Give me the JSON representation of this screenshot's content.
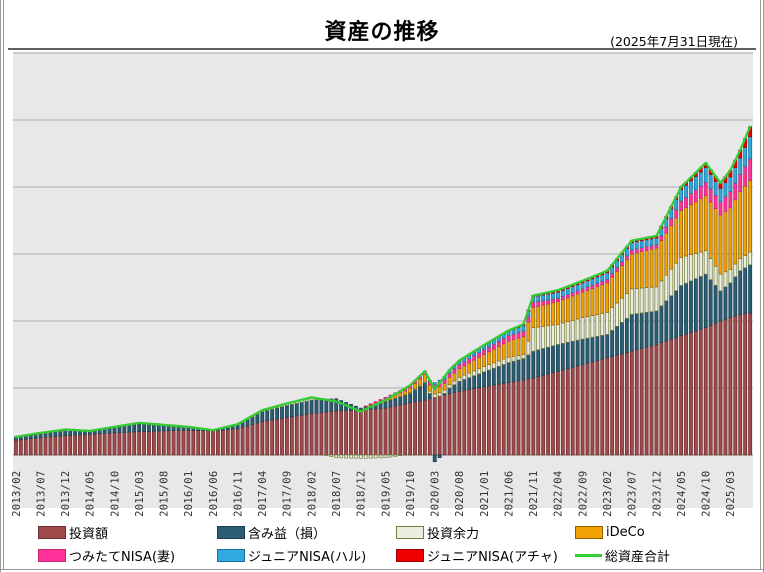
{
  "header": {
    "title": "資産の推移",
    "date_note": "(2025年7月31日現在)"
  },
  "chart_data": {
    "type": "stacked-bar+line",
    "title": "資産の推移",
    "xlabel": "",
    "ylabel": "",
    "y_axis": {
      "labels_visible": false,
      "gridline_intervals": 6,
      "unit": "gridline-units (no tick labels shown)",
      "ylim": [
        -0.15,
        6
      ]
    },
    "x_start": "2013/02",
    "x_end": "2025/07",
    "months_total": 150,
    "tick_interval": 5,
    "x_ticks": [
      "2013/02",
      "2013/07",
      "2013/12",
      "2014/05",
      "2014/10",
      "2015/03",
      "2015/08",
      "2016/01",
      "2016/06",
      "2016/11",
      "2017/04",
      "2017/09",
      "2018/02",
      "2018/07",
      "2018/12",
      "2019/05",
      "2019/10",
      "2020/03",
      "2020/08",
      "2021/01",
      "2021/06",
      "2021/11",
      "2022/04",
      "2022/09",
      "2023/02",
      "2023/07",
      "2023/12",
      "2024/05",
      "2024/10",
      "2025/03"
    ],
    "anchor_indices": [
      0,
      5,
      10,
      15,
      20,
      25,
      30,
      35,
      40,
      45,
      50,
      55,
      60,
      65,
      70,
      75,
      80,
      83,
      85,
      88,
      90,
      95,
      100,
      103,
      105,
      110,
      115,
      120,
      125,
      130,
      135,
      140,
      143,
      145,
      147,
      149
    ],
    "series": [
      {
        "name": "投資額",
        "color": "#A14A4B",
        "border": "#6B2F30",
        "anchors": [
          0.22,
          0.26,
          0.29,
          0.31,
          0.33,
          0.35,
          0.36,
          0.37,
          0.36,
          0.39,
          0.5,
          0.56,
          0.62,
          0.66,
          0.67,
          0.7,
          0.78,
          0.82,
          0.86,
          0.92,
          0.95,
          1.02,
          1.08,
          1.12,
          1.15,
          1.25,
          1.35,
          1.45,
          1.55,
          1.65,
          1.78,
          1.9,
          2.0,
          2.05,
          2.1,
          2.12
        ]
      },
      {
        "name": "含み益（損）",
        "color": "#2B5D73",
        "border": "#193F4F",
        "anchors": [
          0.05,
          0.06,
          0.08,
          0.04,
          0.08,
          0.12,
          0.08,
          0.04,
          0.01,
          0.06,
          0.15,
          0.18,
          0.2,
          0.18,
          0.03,
          0.1,
          0.14,
          0.26,
          -0.1,
          0.08,
          0.15,
          0.22,
          0.3,
          0.32,
          0.4,
          0.4,
          0.38,
          0.35,
          0.55,
          0.5,
          0.75,
          0.8,
          0.45,
          0.52,
          0.65,
          0.72
        ]
      },
      {
        "name": "投資余力",
        "color": "#EDEDDF",
        "border": "#71813D",
        "anchors": [
          0.0,
          0.01,
          0.01,
          0.01,
          0.01,
          0.01,
          0.01,
          0.01,
          0.0,
          0.01,
          0.02,
          0.03,
          0.04,
          -0.04,
          -0.05,
          -0.04,
          0.01,
          0.02,
          0.05,
          0.05,
          0.06,
          0.08,
          0.08,
          0.06,
          0.35,
          0.3,
          0.32,
          0.33,
          0.38,
          0.36,
          0.42,
          0.35,
          0.25,
          0.2,
          0.18,
          0.19
        ]
      },
      {
        "name": "iDeCo",
        "color": "#F2A202",
        "border": "#8F6200",
        "anchors": [
          0,
          0,
          0,
          0,
          0,
          0,
          0,
          0,
          0,
          0,
          0,
          0,
          0,
          0,
          0,
          0.03,
          0.07,
          0.1,
          0.08,
          0.11,
          0.13,
          0.18,
          0.24,
          0.27,
          0.3,
          0.34,
          0.38,
          0.44,
          0.52,
          0.58,
          0.7,
          0.82,
          0.88,
          0.92,
          1.0,
          1.07
        ]
      },
      {
        "name": "つみたてNISA(妻)",
        "color": "#FF3399",
        "border": "#C4256E",
        "anchors": [
          0,
          0,
          0,
          0,
          0,
          0,
          0,
          0,
          0,
          0,
          0,
          0,
          0,
          0,
          0,
          0.03,
          0.04,
          0.05,
          0.06,
          0.06,
          0.06,
          0.07,
          0.08,
          0.08,
          0.08,
          0.05,
          0.05,
          0.05,
          0.06,
          0.05,
          0.14,
          0.2,
          0.2,
          0.24,
          0.26,
          0.32
        ]
      },
      {
        "name": "ジュニアNISA(ハル)",
        "color": "#2FA9E0",
        "border": "#1C6F99",
        "anchors": [
          0,
          0,
          0,
          0,
          0,
          0,
          0,
          0,
          0,
          0,
          0,
          0,
          0,
          0,
          0,
          0,
          0,
          0,
          0.03,
          0.05,
          0.05,
          0.06,
          0.07,
          0.08,
          0.08,
          0.09,
          0.09,
          0.1,
          0.11,
          0.1,
          0.17,
          0.22,
          0.2,
          0.22,
          0.24,
          0.33
        ]
      },
      {
        "name": "ジュニアNISA(アチャ)",
        "color": "#EE0000",
        "border": "#A00000",
        "anchors": [
          0,
          0,
          0,
          0,
          0,
          0,
          0,
          0,
          0,
          0,
          0,
          0,
          0,
          0,
          0,
          0,
          0,
          0,
          0,
          0,
          0.01,
          0.01,
          0.01,
          0.02,
          0.02,
          0.03,
          0.03,
          0.03,
          0.03,
          0.03,
          0.04,
          0.07,
          0.08,
          0.1,
          0.12,
          0.15
        ]
      }
    ],
    "total_line": {
      "name": "総資産合計",
      "color": "#33CC33"
    },
    "plot": {
      "background": "#E8E8E8",
      "gridline_color": "#ABABAB",
      "axis_color": "#8A8A8A"
    }
  },
  "legend": {
    "items": [
      {
        "label": "投資額",
        "type": "box",
        "color": "#A14A4B",
        "border": "#6B2F30"
      },
      {
        "label": "含み益（損）",
        "type": "box",
        "color": "#2B5D73",
        "border": "#193F4F"
      },
      {
        "label": "投資余力",
        "type": "box",
        "color": "#EDEDDF",
        "border": "#71813D"
      },
      {
        "label": "iDeCo",
        "type": "box",
        "color": "#F2A202",
        "border": "#8F6200"
      },
      {
        "label": "つみたてNISA(妻)",
        "type": "box",
        "color": "#FF3399",
        "border": "#C4256E"
      },
      {
        "label": "ジュニアNISA(ハル)",
        "type": "box",
        "color": "#2FA9E0",
        "border": "#1C6F99"
      },
      {
        "label": "ジュニアNISA(アチャ)",
        "type": "box",
        "color": "#EE0000",
        "border": "#A00000"
      },
      {
        "label": "総資産合計",
        "type": "line",
        "color": "#33CC33"
      }
    ]
  }
}
